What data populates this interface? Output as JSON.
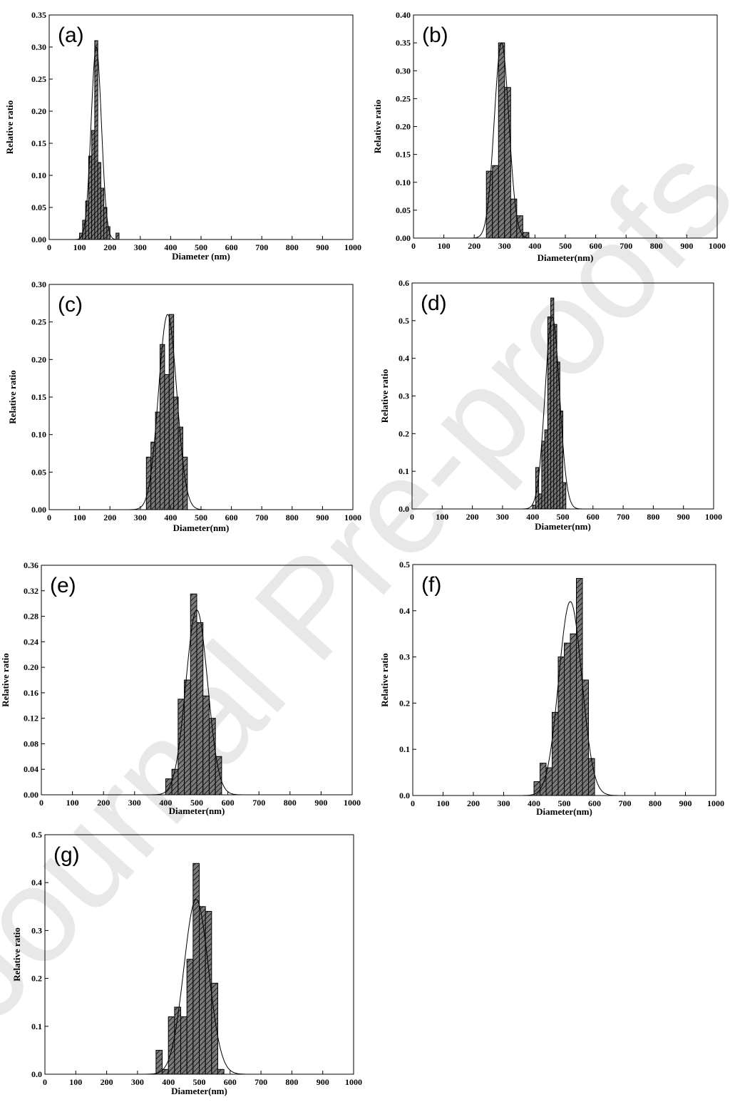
{
  "watermark": "Journal Pre-proofs",
  "chart_data": [
    {
      "type": "bar",
      "panel": "(a)",
      "xlabel": "Diameter (nm)",
      "ylabel": "Relative ratio",
      "xlim": [
        0,
        1000
      ],
      "ylim": [
        0,
        0.35
      ],
      "xticks": [
        0,
        100,
        200,
        300,
        400,
        500,
        600,
        700,
        800,
        900,
        1000
      ],
      "yticks": [
        0.0,
        0.05,
        0.1,
        0.15,
        0.2,
        0.25,
        0.3,
        0.35
      ],
      "bin_width": 10,
      "bins": [
        [
          100,
          0.01
        ],
        [
          110,
          0.03
        ],
        [
          120,
          0.06
        ],
        [
          130,
          0.13
        ],
        [
          140,
          0.17
        ],
        [
          150,
          0.31
        ],
        [
          160,
          0.12
        ],
        [
          170,
          0.08
        ],
        [
          180,
          0.05
        ],
        [
          190,
          0.02
        ],
        [
          220,
          0.01
        ]
      ],
      "fit": {
        "type": "gaussian",
        "mean": 155,
        "sigma": 17,
        "peak": 0.3
      }
    },
    {
      "type": "bar",
      "panel": "(b)",
      "xlabel": "Diameter(nm)",
      "ylabel": "Relative ratio",
      "xlim": [
        0,
        1000
      ],
      "ylim": [
        0,
        0.4
      ],
      "xticks": [
        0,
        100,
        200,
        300,
        400,
        500,
        600,
        700,
        800,
        900,
        1000
      ],
      "yticks": [
        0.0,
        0.05,
        0.1,
        0.15,
        0.2,
        0.25,
        0.3,
        0.35,
        0.4
      ],
      "bin_width": 20,
      "bins": [
        [
          240,
          0.12
        ],
        [
          260,
          0.13
        ],
        [
          280,
          0.35
        ],
        [
          300,
          0.27
        ],
        [
          320,
          0.07
        ],
        [
          340,
          0.04
        ],
        [
          360,
          0.01
        ]
      ],
      "fit": {
        "type": "gaussian",
        "mean": 290,
        "sigma": 24,
        "peak": 0.35
      }
    },
    {
      "type": "bar",
      "panel": "(c)",
      "xlabel": "Diameter(nm)",
      "ylabel": "Relative ratio",
      "xlim": [
        0,
        1000
      ],
      "ylim": [
        0,
        0.3
      ],
      "xticks": [
        0,
        100,
        200,
        300,
        400,
        500,
        600,
        700,
        800,
        900,
        1000
      ],
      "yticks": [
        0.0,
        0.05,
        0.1,
        0.15,
        0.2,
        0.25,
        0.3
      ],
      "bin_width": 15,
      "bins": [
        [
          320,
          0.07
        ],
        [
          335,
          0.09
        ],
        [
          350,
          0.13
        ],
        [
          365,
          0.22
        ],
        [
          380,
          0.18
        ],
        [
          395,
          0.26
        ],
        [
          410,
          0.15
        ],
        [
          425,
          0.11
        ],
        [
          440,
          0.07
        ]
      ],
      "fit": {
        "type": "gaussian",
        "mean": 390,
        "sigma": 30,
        "peak": 0.26
      }
    },
    {
      "type": "bar",
      "panel": "(d)",
      "xlabel": "Diameter(nm)",
      "ylabel": "Relative ratio",
      "xlim": [
        0,
        1000
      ],
      "ylim": [
        0,
        0.6
      ],
      "xticks": [
        0,
        100,
        200,
        300,
        400,
        500,
        600,
        700,
        800,
        900,
        1000
      ],
      "yticks": [
        0.0,
        0.1,
        0.2,
        0.3,
        0.4,
        0.5,
        0.6
      ],
      "bin_width": 10,
      "bins": [
        [
          400,
          0.01
        ],
        [
          410,
          0.11
        ],
        [
          420,
          0.04
        ],
        [
          430,
          0.18
        ],
        [
          440,
          0.21
        ],
        [
          450,
          0.51
        ],
        [
          460,
          0.56
        ],
        [
          470,
          0.49
        ],
        [
          480,
          0.39
        ],
        [
          490,
          0.26
        ],
        [
          500,
          0.07
        ]
      ],
      "fit": {
        "type": "gaussian",
        "mean": 465,
        "sigma": 24,
        "peak": 0.51
      }
    },
    {
      "type": "bar",
      "panel": "(e)",
      "xlabel": "Diameter(nm)",
      "ylabel": "Relative ratio",
      "xlim": [
        0,
        1000
      ],
      "ylim": [
        0,
        0.36
      ],
      "xticks": [
        0,
        100,
        200,
        300,
        400,
        500,
        600,
        700,
        800,
        900,
        1000
      ],
      "yticks": [
        0.0,
        0.04,
        0.08,
        0.12,
        0.16,
        0.2,
        0.24,
        0.28,
        0.32,
        0.36
      ],
      "bin_width": 20,
      "bins": [
        [
          400,
          0.025
        ],
        [
          420,
          0.04
        ],
        [
          440,
          0.15
        ],
        [
          460,
          0.18
        ],
        [
          480,
          0.315
        ],
        [
          500,
          0.27
        ],
        [
          520,
          0.155
        ],
        [
          540,
          0.12
        ],
        [
          560,
          0.06
        ]
      ],
      "fit": {
        "type": "gaussian",
        "mean": 500,
        "sigma": 35,
        "peak": 0.29
      }
    },
    {
      "type": "bar",
      "panel": "(f)",
      "xlabel": "Diameter(nm)",
      "ylabel": "Relative ratio",
      "xlim": [
        0,
        1000
      ],
      "ylim": [
        0,
        0.5
      ],
      "xticks": [
        0,
        100,
        200,
        300,
        400,
        500,
        600,
        700,
        800,
        900,
        1000
      ],
      "yticks": [
        0.0,
        0.1,
        0.2,
        0.3,
        0.4,
        0.5
      ],
      "bin_width": 20,
      "bins": [
        [
          400,
          0.03
        ],
        [
          420,
          0.07
        ],
        [
          440,
          0.06
        ],
        [
          460,
          0.18
        ],
        [
          480,
          0.3
        ],
        [
          500,
          0.33
        ],
        [
          520,
          0.35
        ],
        [
          540,
          0.47
        ],
        [
          560,
          0.25
        ],
        [
          580,
          0.08
        ]
      ],
      "fit": {
        "type": "gaussian",
        "mean": 520,
        "sigma": 38,
        "peak": 0.42
      }
    },
    {
      "type": "bar",
      "panel": "(g)",
      "xlabel": "Diameter(nm)",
      "ylabel": "Relative ratio",
      "xlim": [
        0,
        1000
      ],
      "ylim": [
        0,
        0.5
      ],
      "xticks": [
        0,
        100,
        200,
        300,
        400,
        500,
        600,
        700,
        800,
        900,
        1000
      ],
      "yticks": [
        0.0,
        0.1,
        0.2,
        0.3,
        0.4,
        0.5
      ],
      "bin_width": 20,
      "bins": [
        [
          360,
          0.05
        ],
        [
          380,
          0.01
        ],
        [
          400,
          0.12
        ],
        [
          420,
          0.14
        ],
        [
          440,
          0.12
        ],
        [
          460,
          0.24
        ],
        [
          480,
          0.44
        ],
        [
          500,
          0.35
        ],
        [
          520,
          0.34
        ],
        [
          540,
          0.19
        ],
        [
          560,
          0.01
        ]
      ],
      "fit": {
        "type": "gaussian",
        "mean": 490,
        "sigma": 40,
        "peak": 0.365
      }
    }
  ]
}
